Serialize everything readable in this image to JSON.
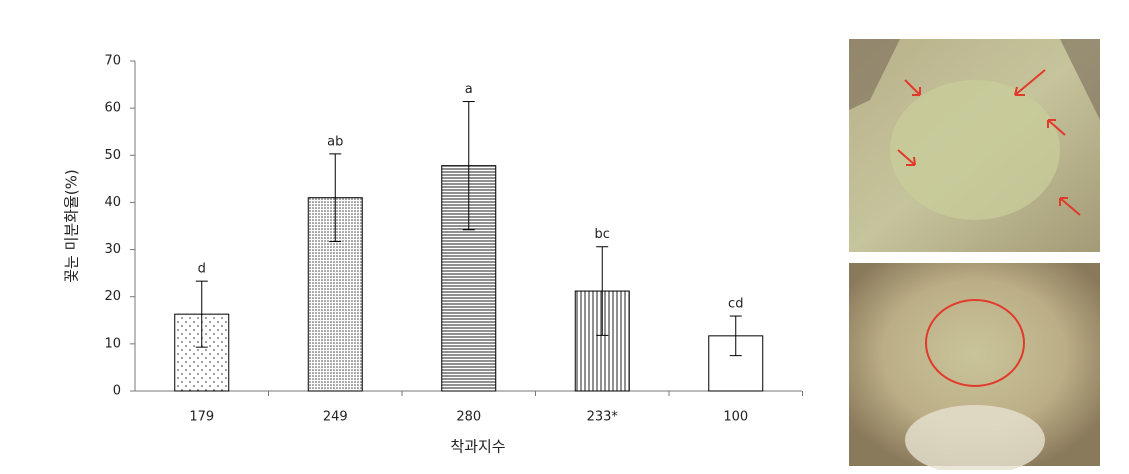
{
  "chart_data": {
    "type": "bar",
    "xlabel": "착과지수",
    "ylabel": "꽃눈 미분화율(%)",
    "categories": [
      "179",
      "249",
      "280",
      "233*",
      "100"
    ],
    "values": [
      16.3,
      41.0,
      47.8,
      21.2,
      11.7
    ],
    "errors": [
      7.0,
      9.3,
      13.6,
      9.4,
      4.2
    ],
    "annotations": [
      "d",
      "ab",
      "a",
      "bc",
      "cd"
    ],
    "color": "#000000",
    "ylim": [
      0,
      70
    ],
    "yticks": [
      0,
      10,
      20,
      30,
      40,
      50,
      60,
      70
    ]
  }
}
